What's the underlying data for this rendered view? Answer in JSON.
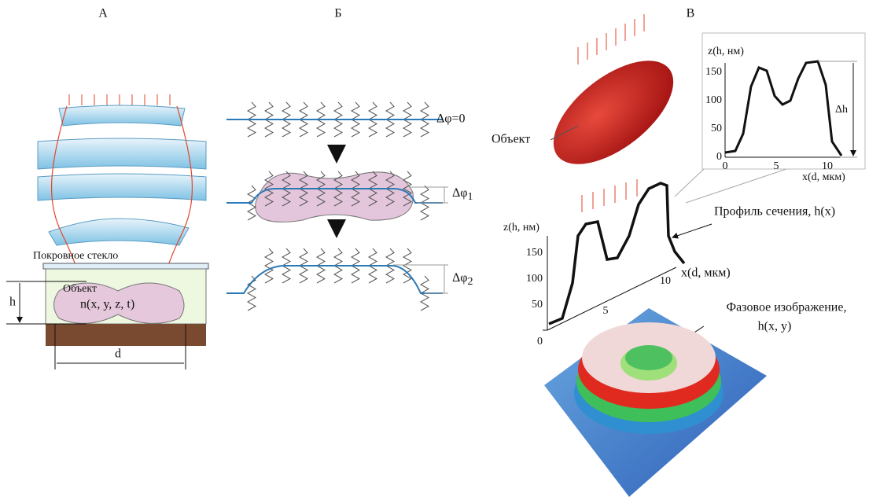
{
  "panel_a": {
    "label": "А",
    "cover_glass": "Покровное стекло",
    "object": "Объект",
    "refractive_index": "n(x, y, z, t)",
    "height": "h",
    "width": "d"
  },
  "panel_b": {
    "label": "Б",
    "phase_0": "Δφ=0",
    "phase_1": {
      "symbol": "Δφ",
      "sub": "1"
    },
    "phase_2": {
      "symbol": "Δφ",
      "sub": "2"
    }
  },
  "panel_c": {
    "label": "В",
    "object": "Объект",
    "inset_plot": {
      "y_label": "z(h, нм)",
      "x_label": "x(d, мкм)",
      "yticks": [
        "150",
        "100",
        "50",
        "0"
      ],
      "xticks": [
        "0",
        "5",
        "10"
      ],
      "delta": "Δh"
    },
    "profile_plot": {
      "y_label": "z(h, нм)",
      "x_label": "x(d, мкм)",
      "yticks": [
        "150",
        "100",
        "50",
        "0"
      ],
      "xticks": [
        "5",
        "10"
      ],
      "title": "Профиль сечения, h(x)"
    },
    "phase_image": {
      "title_line1": "Фазовое изображение,",
      "title_line2": "h(x, y)"
    }
  }
}
